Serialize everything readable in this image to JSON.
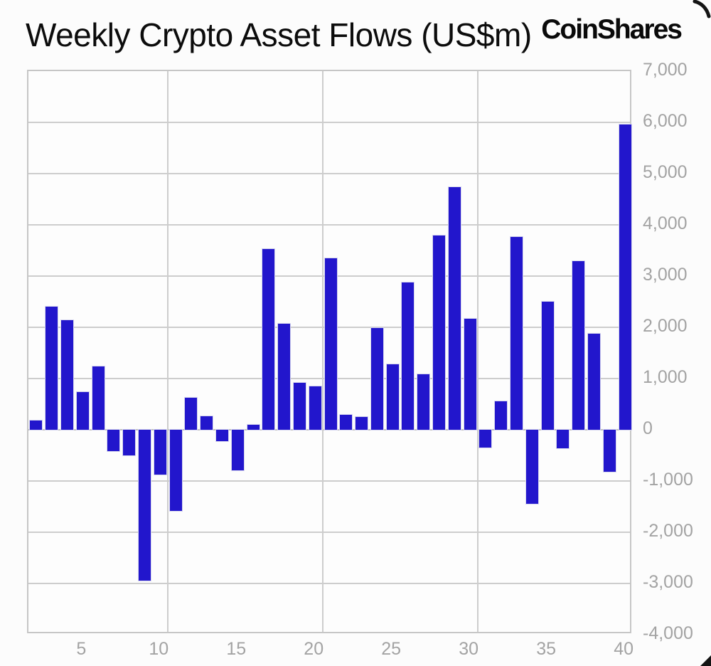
{
  "header": {
    "title": "Weekly Crypto Asset Flows (US$m)",
    "brand": "CoinShares"
  },
  "chart_data": {
    "type": "bar",
    "title": "Weekly Crypto Asset Flows (US$m)",
    "xlabel": "",
    "ylabel": "",
    "series_name": "Weekly crypto asset flows (US$m)",
    "x": [
      2,
      3,
      4,
      5,
      6,
      7,
      8,
      9,
      10,
      11,
      12,
      13,
      14,
      15,
      16,
      17,
      18,
      19,
      20,
      21,
      22,
      23,
      24,
      25,
      26,
      27,
      28,
      29,
      30,
      31,
      32,
      33,
      34,
      35,
      36,
      37,
      38,
      39,
      40
    ],
    "values": [
      175,
      2400,
      2140,
      730,
      1240,
      -410,
      -495,
      -2945,
      -880,
      -1580,
      620,
      270,
      -220,
      -790,
      100,
      3530,
      2070,
      910,
      850,
      3350,
      290,
      250,
      1985,
      1280,
      2880,
      1090,
      3795,
      4740,
      2160,
      -350,
      550,
      3760,
      -1440,
      2500,
      -360,
      3290,
      1880,
      -820,
      5960
    ],
    "xlim": [
      1.5,
      40.5
    ],
    "ylim": [
      -4000,
      7000
    ],
    "x_ticks": [
      5,
      10,
      15,
      20,
      25,
      30,
      35,
      40
    ],
    "y_ticks": [
      7000,
      6000,
      5000,
      4000,
      3000,
      2000,
      1000,
      0,
      -1000,
      -2000,
      -3000,
      -4000
    ],
    "y_tick_labels": [
      "7,000",
      "6,000",
      "5,000",
      "4,000",
      "3,000",
      "2,000",
      "1,000",
      "0",
      "-1,000",
      "-2,000",
      "-3,000",
      "-4,000"
    ],
    "between_gridlines_x": [
      10.5,
      20.5,
      30.5
    ],
    "bar_color": "#2216cc",
    "grid": true,
    "legend": "none"
  }
}
